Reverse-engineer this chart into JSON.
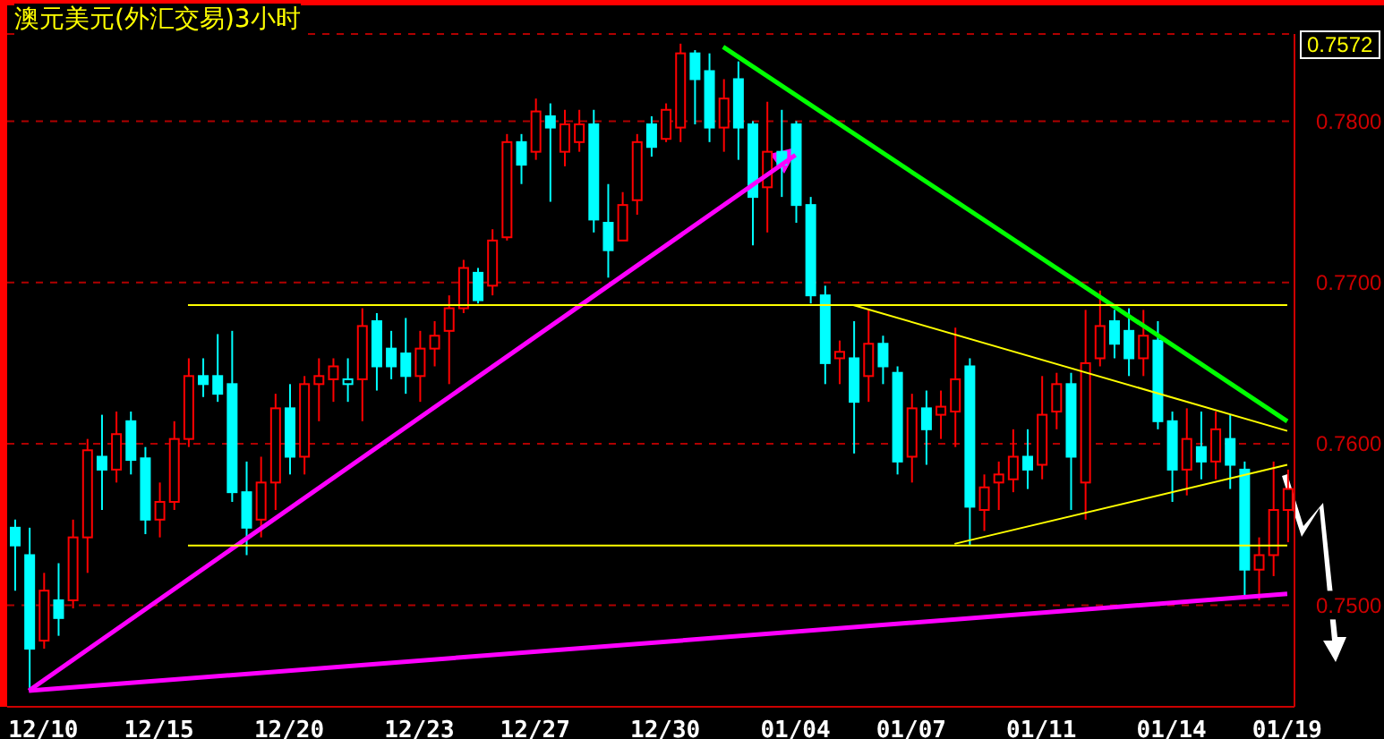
{
  "chart_data": {
    "type": "candlestick",
    "title": "澳元美元(外汇交易)3小时",
    "annotations": [
      "0.7572"
    ],
    "categories": [
      null,
      null,
      "12/10",
      null,
      null,
      null,
      null,
      null,
      null,
      null,
      "12/15",
      null,
      null,
      null,
      null,
      null,
      null,
      null,
      null,
      "12/20",
      null,
      null,
      null,
      null,
      null,
      null,
      null,
      null,
      "12/23",
      null,
      null,
      null,
      null,
      null,
      null,
      null,
      "12/27",
      null,
      null,
      null,
      null,
      null,
      null,
      null,
      null,
      "12/30",
      null,
      null,
      null,
      null,
      null,
      null,
      null,
      null,
      "01/04",
      null,
      null,
      null,
      null,
      null,
      null,
      null,
      "01/07",
      null,
      null,
      null,
      null,
      null,
      null,
      null,
      null,
      "01/11",
      null,
      null,
      null,
      null,
      null,
      null,
      null,
      null,
      "01/14",
      null,
      null,
      null,
      null,
      null,
      null,
      null,
      "01/19"
    ],
    "ohlc": [
      [
        0.7548,
        0.7553,
        0.7509,
        0.7537
      ],
      [
        0.7531,
        0.7548,
        0.7448,
        0.7473
      ],
      [
        0.7478,
        0.752,
        0.7473,
        0.7509
      ],
      [
        0.7503,
        0.7526,
        0.7481,
        0.7492
      ],
      [
        0.7503,
        0.7553,
        0.7498,
        0.7542
      ],
      [
        0.7542,
        0.7603,
        0.752,
        0.7596
      ],
      [
        0.7592,
        0.7618,
        0.7559,
        0.7584
      ],
      [
        0.7584,
        0.762,
        0.7576,
        0.7606
      ],
      [
        0.7614,
        0.762,
        0.7581,
        0.759
      ],
      [
        0.7591,
        0.7598,
        0.7544,
        0.7553
      ],
      [
        0.7553,
        0.7576,
        0.7542,
        0.7564
      ],
      [
        0.7564,
        0.7614,
        0.7559,
        0.7603
      ],
      [
        0.7603,
        0.7653,
        0.7598,
        0.7642
      ],
      [
        0.7642,
        0.7653,
        0.7629,
        0.7637
      ],
      [
        0.7642,
        0.7668,
        0.7626,
        0.7631
      ],
      [
        0.7637,
        0.767,
        0.7564,
        0.757
      ],
      [
        0.757,
        0.7589,
        0.7531,
        0.7548
      ],
      [
        0.7553,
        0.7592,
        0.7542,
        0.7576
      ],
      [
        0.7576,
        0.7631,
        0.7559,
        0.7622
      ],
      [
        0.7622,
        0.7637,
        0.7581,
        0.7592
      ],
      [
        0.7592,
        0.7642,
        0.7581,
        0.7637
      ],
      [
        0.7637,
        0.7653,
        0.7614,
        0.7642
      ],
      [
        0.764,
        0.7653,
        0.7626,
        0.7648
      ],
      [
        0.7637,
        0.7653,
        0.7626,
        0.764
      ],
      [
        0.764,
        0.7684,
        0.7614,
        0.7673
      ],
      [
        0.7676,
        0.7681,
        0.7633,
        0.7648
      ],
      [
        0.7659,
        0.767,
        0.764,
        0.7648
      ],
      [
        0.7656,
        0.7678,
        0.7631,
        0.7642
      ],
      [
        0.7642,
        0.767,
        0.7626,
        0.7659
      ],
      [
        0.7659,
        0.7676,
        0.7648,
        0.7667
      ],
      [
        0.767,
        0.7692,
        0.7637,
        0.7684
      ],
      [
        0.7684,
        0.7714,
        0.7681,
        0.7709
      ],
      [
        0.7706,
        0.7709,
        0.7687,
        0.7689
      ],
      [
        0.7698,
        0.7733,
        0.7692,
        0.7726
      ],
      [
        0.7728,
        0.7792,
        0.7726,
        0.7787
      ],
      [
        0.7787,
        0.7792,
        0.7761,
        0.7773
      ],
      [
        0.7781,
        0.7814,
        0.7776,
        0.7806
      ],
      [
        0.7803,
        0.7811,
        0.775,
        0.7796
      ],
      [
        0.7781,
        0.7807,
        0.7772,
        0.7798
      ],
      [
        0.7787,
        0.7807,
        0.7781,
        0.7798
      ],
      [
        0.7798,
        0.7807,
        0.7731,
        0.7739
      ],
      [
        0.7737,
        0.7761,
        0.7703,
        0.772
      ],
      [
        0.7726,
        0.7756,
        0.7726,
        0.7748
      ],
      [
        0.7751,
        0.7792,
        0.7742,
        0.7787
      ],
      [
        0.7798,
        0.7803,
        0.7778,
        0.7784
      ],
      [
        0.7789,
        0.7811,
        0.7787,
        0.7807
      ],
      [
        0.7796,
        0.7848,
        0.7787,
        0.7842
      ],
      [
        0.7842,
        0.7844,
        0.7798,
        0.7826
      ],
      [
        0.7831,
        0.7842,
        0.7787,
        0.7796
      ],
      [
        0.7796,
        0.7826,
        0.7781,
        0.7814
      ],
      [
        0.7826,
        0.7837,
        0.7776,
        0.7796
      ],
      [
        0.7798,
        0.78,
        0.7723,
        0.7753
      ],
      [
        0.7759,
        0.7812,
        0.7731,
        0.7781
      ],
      [
        0.7781,
        0.7807,
        0.7753,
        0.7773
      ],
      [
        0.7798,
        0.78,
        0.7737,
        0.7748
      ],
      [
        0.7748,
        0.7753,
        0.7687,
        0.7692
      ],
      [
        0.7692,
        0.7698,
        0.7637,
        0.765
      ],
      [
        0.7653,
        0.7664,
        0.7637,
        0.7657
      ],
      [
        0.7653,
        0.7676,
        0.7594,
        0.7626
      ],
      [
        0.7642,
        0.7683,
        0.7626,
        0.7662
      ],
      [
        0.7662,
        0.7667,
        0.7637,
        0.7648
      ],
      [
        0.7644,
        0.7648,
        0.7581,
        0.7589
      ],
      [
        0.7592,
        0.7631,
        0.7576,
        0.7622
      ],
      [
        0.7622,
        0.7633,
        0.7587,
        0.7609
      ],
      [
        0.7618,
        0.7633,
        0.7603,
        0.7623
      ],
      [
        0.762,
        0.7672,
        0.7598,
        0.764
      ],
      [
        0.7648,
        0.7653,
        0.7537,
        0.7561
      ],
      [
        0.7559,
        0.7581,
        0.7546,
        0.7573
      ],
      [
        0.7576,
        0.7589,
        0.7559,
        0.7581
      ],
      [
        0.7578,
        0.7609,
        0.757,
        0.7592
      ],
      [
        0.7592,
        0.7609,
        0.7572,
        0.7584
      ],
      [
        0.7587,
        0.7642,
        0.7578,
        0.7618
      ],
      [
        0.762,
        0.7644,
        0.7609,
        0.7637
      ],
      [
        0.7637,
        0.7644,
        0.7559,
        0.7592
      ],
      [
        0.7576,
        0.7683,
        0.7553,
        0.765
      ],
      [
        0.7653,
        0.7695,
        0.7648,
        0.7673
      ],
      [
        0.7676,
        0.7683,
        0.7653,
        0.7662
      ],
      [
        0.767,
        0.7684,
        0.7642,
        0.7653
      ],
      [
        0.7653,
        0.7683,
        0.7642,
        0.7667
      ],
      [
        0.7664,
        0.7676,
        0.7609,
        0.7614
      ],
      [
        0.7614,
        0.762,
        0.7564,
        0.7584
      ],
      [
        0.7584,
        0.7622,
        0.7568,
        0.7603
      ],
      [
        0.7598,
        0.762,
        0.7578,
        0.7589
      ],
      [
        0.7589,
        0.762,
        0.7578,
        0.7609
      ],
      [
        0.7603,
        0.7618,
        0.7572,
        0.7587
      ],
      [
        0.7584,
        0.7589,
        0.7506,
        0.7522
      ],
      [
        0.7522,
        0.7542,
        0.7503,
        0.7531
      ],
      [
        0.7531,
        0.7589,
        0.7518,
        0.7559
      ],
      [
        0.7559,
        0.7584,
        0.7539,
        0.7572
      ]
    ],
    "colors": [
      "#00ffff",
      "#00ffff",
      "#ff0000",
      "#00ffff",
      "#ff0000",
      "#ff0000",
      "#00ffff",
      "#ff0000",
      "#00ffff",
      "#00ffff",
      "#ff0000",
      "#ff0000",
      "#ff0000",
      "#00ffff",
      "#00ffff",
      "#00ffff",
      "#00ffff",
      "#ff0000",
      "#ff0000",
      "#00ffff",
      "#ff0000",
      "#ff0000",
      "#ff0000",
      "#00ffff",
      "#ff0000",
      "#00ffff",
      "#00ffff",
      "#00ffff",
      "#ff0000",
      "#ff0000",
      "#ff0000",
      "#ff0000",
      "#00ffff",
      "#ff0000",
      "#ff0000",
      "#00ffff",
      "#ff0000",
      "#00ffff",
      "#ff0000",
      "#ff0000",
      "#00ffff",
      "#00ffff",
      "#ff0000",
      "#ff0000",
      "#00ffff",
      "#ff0000",
      "#ff0000",
      "#00ffff",
      "#00ffff",
      "#ff0000",
      "#00ffff",
      "#00ffff",
      "#ff0000",
      "#00ffff",
      "#00ffff",
      "#00ffff",
      "#00ffff",
      "#ff0000",
      "#00ffff",
      "#ff0000",
      "#00ffff",
      "#00ffff",
      "#ff0000",
      "#00ffff",
      "#ff0000",
      "#ff0000",
      "#00ffff",
      "#ff0000",
      "#ff0000",
      "#ff0000",
      "#00ffff",
      "#ff0000",
      "#ff0000",
      "#00ffff",
      "#ff0000",
      "#ff0000",
      "#00ffff",
      "#00ffff",
      "#ff0000",
      "#00ffff",
      "#00ffff",
      "#ff0000",
      "#00ffff",
      "#ff0000",
      "#00ffff",
      "#00ffff",
      "#ff0000",
      "#ff0000",
      "#ff0000"
    ],
    "series": [
      {
        "type": "line",
        "color": "#ff00ff",
        "values": [
          null,
          0.7447,
          null,
          null,
          null,
          null,
          null,
          null,
          null,
          null,
          null,
          null,
          null,
          null,
          null,
          null,
          null,
          null,
          null,
          null,
          null,
          null,
          null,
          null,
          null,
          null,
          null,
          null,
          null,
          null,
          null,
          null,
          null,
          null,
          null,
          null,
          null,
          null,
          null,
          null,
          null,
          null,
          null,
          null,
          null,
          null,
          null,
          null,
          null,
          null,
          null,
          null,
          null,
          null,
          0.7779,
          null,
          null,
          null,
          null,
          null,
          null,
          null,
          null,
          null,
          null,
          null,
          null,
          null,
          null,
          null,
          null,
          null,
          null,
          null,
          null,
          null,
          null,
          null,
          null,
          null,
          null,
          null,
          null,
          null,
          null,
          null,
          null,
          null,
          null
        ]
      },
      {
        "type": "line",
        "color": "#ff00ff",
        "values": [
          null,
          0.7447,
          null,
          null,
          null,
          null,
          null,
          null,
          null,
          null,
          null,
          null,
          null,
          null,
          null,
          null,
          null,
          null,
          null,
          null,
          null,
          null,
          null,
          null,
          null,
          null,
          null,
          null,
          null,
          null,
          null,
          null,
          null,
          null,
          null,
          null,
          null,
          null,
          null,
          null,
          null,
          null,
          null,
          null,
          null,
          null,
          null,
          null,
          null,
          null,
          null,
          null,
          null,
          null,
          null,
          null,
          null,
          null,
          null,
          null,
          null,
          null,
          null,
          null,
          null,
          null,
          null,
          null,
          null,
          null,
          null,
          null,
          null,
          null,
          null,
          null,
          null,
          null,
          null,
          null,
          null,
          null,
          null,
          null,
          null,
          null,
          null,
          null,
          0.7507
        ]
      },
      {
        "type": "line",
        "color": "#00ff00",
        "values": [
          null,
          null,
          null,
          null,
          null,
          null,
          null,
          null,
          null,
          null,
          null,
          null,
          null,
          null,
          null,
          null,
          null,
          null,
          null,
          null,
          null,
          null,
          null,
          null,
          null,
          null,
          null,
          null,
          null,
          null,
          null,
          null,
          null,
          null,
          null,
          null,
          null,
          null,
          null,
          null,
          null,
          null,
          null,
          null,
          null,
          null,
          null,
          null,
          null,
          0.7846,
          null,
          null,
          null,
          null,
          null,
          null,
          null,
          null,
          null,
          null,
          null,
          null,
          null,
          null,
          null,
          null,
          null,
          null,
          null,
          null,
          null,
          null,
          null,
          null,
          null,
          null,
          null,
          null,
          null,
          null,
          null,
          null,
          null,
          null,
          null,
          null,
          null,
          null,
          0.7614
        ]
      },
      {
        "type": "line",
        "color": "#ffff00",
        "values": [
          null,
          null,
          null,
          null,
          null,
          null,
          null,
          null,
          null,
          null,
          null,
          null,
          null,
          null,
          null,
          null,
          null,
          null,
          null,
          null,
          null,
          null,
          null,
          null,
          null,
          null,
          null,
          null,
          null,
          null,
          null,
          null,
          null,
          null,
          null,
          null,
          null,
          null,
          null,
          null,
          null,
          null,
          null,
          null,
          null,
          null,
          null,
          null,
          null,
          null,
          null,
          null,
          null,
          null,
          null,
          null,
          null,
          null,
          0.7686,
          null,
          null,
          null,
          null,
          null,
          null,
          null,
          null,
          null,
          null,
          null,
          null,
          null,
          null,
          null,
          null,
          null,
          null,
          null,
          null,
          null,
          null,
          null,
          null,
          null,
          null,
          null,
          null,
          null,
          0.7608
        ]
      },
      {
        "type": "line",
        "color": "#ffff00",
        "values": [
          null,
          null,
          null,
          null,
          null,
          null,
          null,
          null,
          null,
          null,
          null,
          null,
          null,
          null,
          null,
          null,
          null,
          null,
          null,
          null,
          null,
          null,
          null,
          null,
          null,
          null,
          null,
          null,
          null,
          null,
          null,
          null,
          null,
          null,
          null,
          null,
          null,
          null,
          null,
          null,
          null,
          null,
          null,
          null,
          null,
          null,
          null,
          null,
          null,
          null,
          null,
          null,
          null,
          null,
          null,
          null,
          null,
          null,
          null,
          null,
          null,
          null,
          null,
          null,
          null,
          0.7538,
          null,
          null,
          null,
          null,
          null,
          null,
          null,
          null,
          null,
          null,
          null,
          null,
          null,
          null,
          null,
          null,
          null,
          null,
          null,
          null,
          null,
          null,
          0.7587
        ]
      },
      {
        "type": "line",
        "color": "#ffff00",
        "values": [
          null,
          null,
          null,
          null,
          null,
          null,
          null,
          null,
          null,
          null,
          null,
          null,
          0.7686,
          null,
          null,
          null,
          null,
          null,
          null,
          null,
          null,
          null,
          null,
          null,
          null,
          null,
          null,
          null,
          null,
          null,
          null,
          null,
          null,
          null,
          null,
          null,
          null,
          null,
          null,
          null,
          null,
          null,
          null,
          null,
          null,
          null,
          null,
          null,
          null,
          null,
          null,
          null,
          null,
          null,
          null,
          null,
          null,
          null,
          null,
          null,
          null,
          null,
          null,
          null,
          null,
          null,
          null,
          null,
          null,
          null,
          null,
          null,
          null,
          null,
          null,
          null,
          null,
          null,
          null,
          null,
          null,
          null,
          null,
          null,
          null,
          null,
          null,
          null,
          0.7686
        ]
      },
      {
        "type": "line",
        "color": "#ffff00",
        "values": [
          null,
          null,
          null,
          null,
          null,
          null,
          null,
          null,
          null,
          null,
          null,
          null,
          0.7537,
          null,
          null,
          null,
          null,
          null,
          null,
          null,
          null,
          null,
          null,
          null,
          null,
          null,
          null,
          null,
          null,
          null,
          null,
          null,
          null,
          null,
          null,
          null,
          null,
          null,
          null,
          null,
          null,
          null,
          null,
          null,
          null,
          null,
          null,
          null,
          null,
          null,
          null,
          null,
          null,
          null,
          null,
          null,
          null,
          null,
          null,
          null,
          null,
          null,
          null,
          null,
          null,
          null,
          null,
          null,
          null,
          null,
          null,
          null,
          null,
          null,
          null,
          null,
          null,
          null,
          null,
          null,
          null,
          null,
          null,
          null,
          null,
          null,
          null,
          null,
          0.7537
        ]
      }
    ],
    "ylim": [
      0.7437,
      0.7854
    ],
    "yticks": [
      {
        "value": 0.75,
        "label": "0.7500"
      },
      {
        "value": 0.76,
        "label": "0.7600"
      },
      {
        "value": 0.77,
        "label": "0.7700"
      },
      {
        "value": 0.78,
        "label": "0.7800"
      }
    ],
    "grid": "y"
  }
}
